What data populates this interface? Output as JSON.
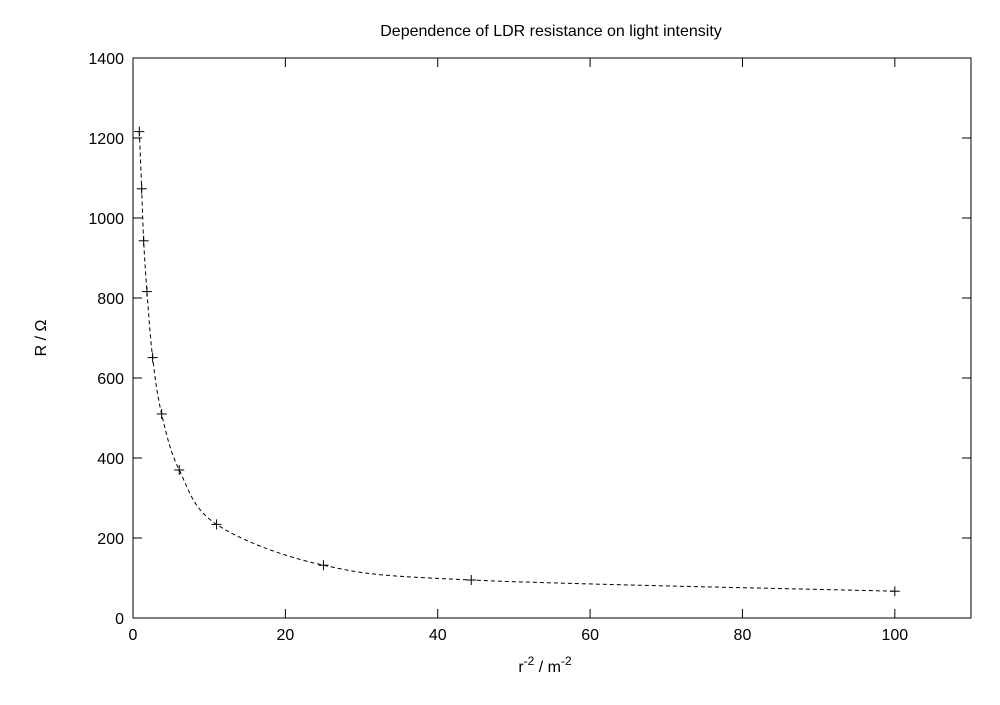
{
  "chart_data": {
    "type": "scatter",
    "title": "Dependence of LDR resistance on light intensity",
    "xlabel": "r",
    "xlabel_sup": "-2",
    "xlabel_unit": " / m",
    "xlabel_unit_sup": "-2",
    "ylabel": "R / Ω",
    "xlim": [
      0,
      110
    ],
    "ylim": [
      0,
      1400
    ],
    "xticks": [
      0,
      20,
      40,
      60,
      80,
      100
    ],
    "yticks": [
      0,
      200,
      400,
      600,
      800,
      1000,
      1200,
      1400
    ],
    "grid": false,
    "marker": "plus",
    "fit_line": "dashed",
    "color": "#000000",
    "x": [
      0.83,
      1.14,
      1.4,
      1.83,
      2.58,
      3.76,
      6.07,
      10.97,
      25,
      44.4,
      100
    ],
    "y": [
      1216,
      1073,
      943,
      816,
      651,
      510,
      370,
      234,
      132,
      95,
      67
    ]
  }
}
